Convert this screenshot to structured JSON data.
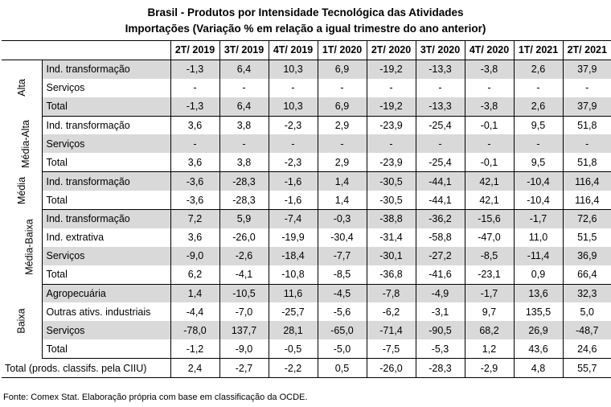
{
  "title": "Brasil - Produtos por Intensidade Tecnológica das Atividades",
  "subtitle": "Importações (Variação % em relação a igual trimestre do ano anterior)",
  "columns": [
    "2T/ 2019",
    "3T/ 2019",
    "4T/ 2019",
    "1T/ 2020",
    "2T/ 2020",
    "3T/ 2020",
    "4T/ 2020",
    "1T/ 2021",
    "2T/ 2021"
  ],
  "groups": [
    {
      "name": "Alta",
      "rows": [
        {
          "label": "Ind. transformação",
          "values": [
            "-1,3",
            "6,4",
            "10,3",
            "6,9",
            "-19,2",
            "-13,3",
            "-3,8",
            "2,6",
            "37,9"
          ]
        },
        {
          "label": "Serviços",
          "values": [
            "-",
            "-",
            "-",
            "-",
            "-",
            "-",
            "-",
            "-",
            "-"
          ]
        },
        {
          "label": "Total",
          "values": [
            "-1,3",
            "6,4",
            "10,3",
            "6,9",
            "-19,2",
            "-13,3",
            "-3,8",
            "2,6",
            "37,9"
          ]
        }
      ]
    },
    {
      "name": "Média-Alta",
      "rows": [
        {
          "label": "Ind. transformação",
          "values": [
            "3,6",
            "3,8",
            "-2,3",
            "2,9",
            "-23,9",
            "-25,4",
            "-0,1",
            "9,5",
            "51,8"
          ]
        },
        {
          "label": "Serviços",
          "values": [
            "-",
            "-",
            "-",
            "-",
            "-",
            "-",
            "-",
            "-",
            "-"
          ]
        },
        {
          "label": "Total",
          "values": [
            "3,6",
            "3,8",
            "-2,3",
            "2,9",
            "-23,9",
            "-25,4",
            "-0,1",
            "9,5",
            "51,8"
          ]
        }
      ]
    },
    {
      "name": "Média",
      "rows": [
        {
          "label": "Ind. transformação",
          "values": [
            "-3,6",
            "-28,3",
            "-1,6",
            "1,4",
            "-30,5",
            "-44,1",
            "42,1",
            "-10,4",
            "116,4"
          ]
        },
        {
          "label": "Total",
          "values": [
            "-3,6",
            "-28,3",
            "-1,6",
            "1,4",
            "-30,5",
            "-44,1",
            "42,1",
            "-10,4",
            "116,4"
          ]
        }
      ]
    },
    {
      "name": "Média-Baixa",
      "rows": [
        {
          "label": "Ind. transformação",
          "values": [
            "7,2",
            "5,9",
            "-7,4",
            "-0,3",
            "-38,8",
            "-36,2",
            "-15,6",
            "-1,7",
            "72,6"
          ]
        },
        {
          "label": "Ind. extrativa",
          "values": [
            "3,6",
            "-26,0",
            "-19,9",
            "-30,4",
            "-31,4",
            "-58,8",
            "-47,0",
            "11,0",
            "51,5"
          ]
        },
        {
          "label": "Serviços",
          "values": [
            "-9,0",
            "-2,6",
            "-18,4",
            "-7,7",
            "-30,1",
            "-27,2",
            "-8,5",
            "-11,4",
            "36,9"
          ]
        },
        {
          "label": "Total",
          "values": [
            "6,2",
            "-4,1",
            "-10,8",
            "-8,5",
            "-36,8",
            "-41,6",
            "-23,1",
            "0,9",
            "66,4"
          ]
        }
      ]
    },
    {
      "name": "Baixa",
      "rows": [
        {
          "label": "Agropecuária",
          "values": [
            "1,4",
            "-10,5",
            "11,6",
            "-4,5",
            "-7,8",
            "-4,9",
            "-1,7",
            "13,6",
            "32,3"
          ]
        },
        {
          "label": "Outras ativs. industriais",
          "values": [
            "-4,4",
            "-7,0",
            "-25,7",
            "-5,6",
            "-6,2",
            "-3,1",
            "9,7",
            "135,5",
            "5,0"
          ]
        },
        {
          "label": "Serviços",
          "values": [
            "-78,0",
            "137,7",
            "28,1",
            "-65,0",
            "-71,4",
            "-90,5",
            "68,2",
            "26,9",
            "-48,7"
          ]
        },
        {
          "label": "Total",
          "values": [
            "-1,2",
            "-9,0",
            "-0,5",
            "-5,0",
            "-7,5",
            "-5,3",
            "1,2",
            "43,6",
            "24,6"
          ]
        }
      ]
    }
  ],
  "total_row": {
    "label": "Total (prods. classifs. pela CIIU)",
    "values": [
      "2,4",
      "-2,7",
      "-2,2",
      "0,5",
      "-26,0",
      "-28,3",
      "-2,9",
      "4,8",
      "55,7"
    ]
  },
  "source": "Fonte: Comex Stat. Elaboração própria com base em classificação da OCDE.",
  "colors": {
    "shade": "#d9d9d9",
    "border": "#000000"
  }
}
